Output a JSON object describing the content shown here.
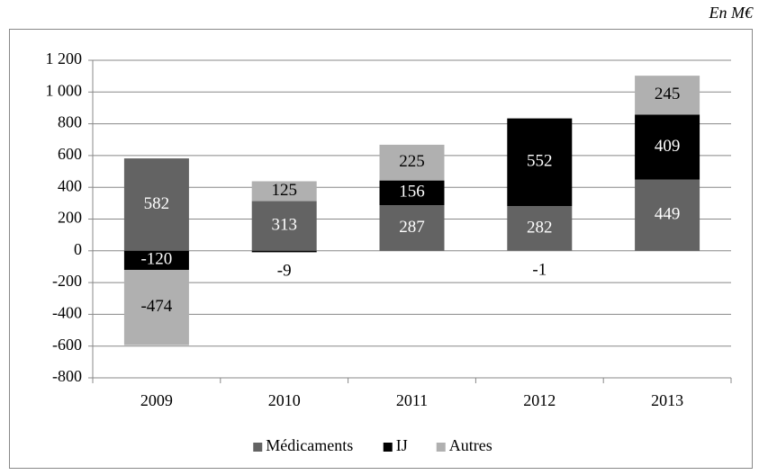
{
  "chart_data": {
    "type": "stacked-bar",
    "annotation": "En M€",
    "categories": [
      "2009",
      "2010",
      "2011",
      "2012",
      "2013"
    ],
    "series": [
      {
        "name": "Médicaments",
        "color": "#636363",
        "values": [
          582,
          313,
          287,
          282,
          449
        ]
      },
      {
        "name": "IJ",
        "color": "#000000",
        "values": [
          -120,
          -9,
          156,
          552,
          409
        ]
      },
      {
        "name": "Autres",
        "color": "#b0b0b0",
        "values": [
          -474,
          125,
          225,
          -1,
          245
        ]
      }
    ],
    "ylim": [
      -800,
      1200
    ],
    "yticks": [
      -800,
      -600,
      -400,
      -200,
      0,
      200,
      400,
      600,
      800,
      {
        "value": 1000,
        "label": "1 000"
      },
      {
        "value": 1200,
        "label": "1 200"
      }
    ],
    "grid": true,
    "legend": "bottom"
  }
}
